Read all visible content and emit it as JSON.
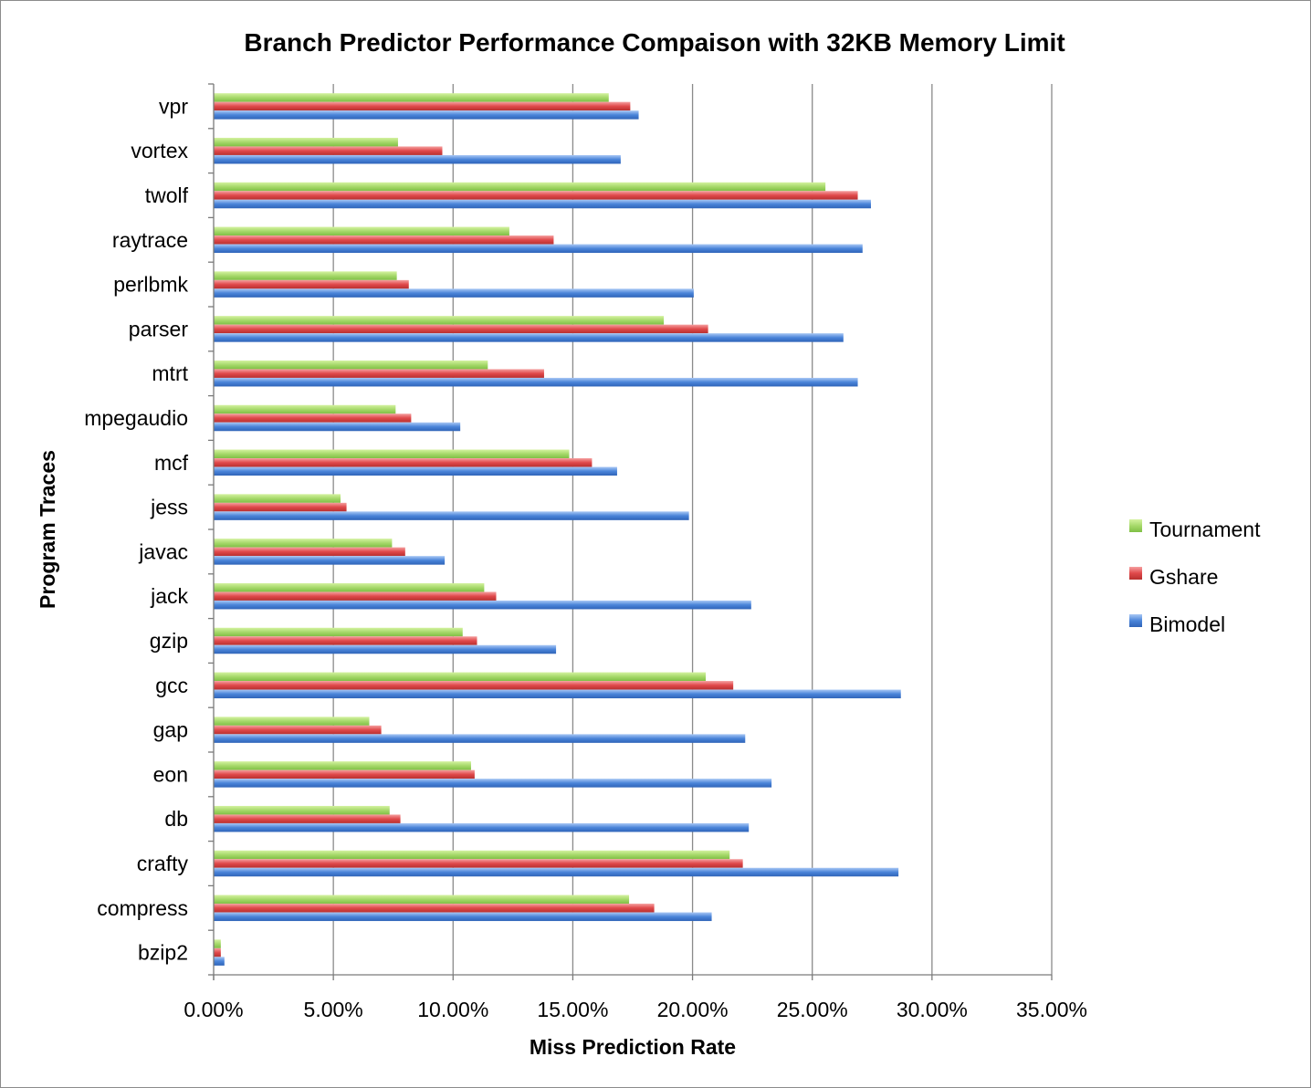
{
  "chart_data": {
    "type": "bar",
    "orientation": "horizontal",
    "title": "Branch Predictor Performance Compaison with 32KB Memory Limit",
    "xlabel": "Miss Prediction Rate",
    "ylabel": "Program Traces",
    "xlim": [
      0,
      0.35
    ],
    "x_ticks": [
      0,
      0.05,
      0.1,
      0.15,
      0.2,
      0.25,
      0.3,
      0.35
    ],
    "x_tick_labels": [
      "0.00%",
      "5.00%",
      "10.00%",
      "15.00%",
      "20.00%",
      "25.00%",
      "30.00%",
      "35.00%"
    ],
    "grid": "vertical major gridlines",
    "legend_position": "right",
    "categories": [
      "vpr",
      "vortex",
      "twolf",
      "raytrace",
      "perlbmk",
      "parser",
      "mtrt",
      "mpegaudio",
      "mcf",
      "jess",
      "javac",
      "jack",
      "gzip",
      "gcc",
      "gap",
      "eon",
      "db",
      "crafty",
      "compress",
      "bzip2"
    ],
    "series": [
      {
        "name": "Tournament",
        "color": "#a6d96a",
        "values": [
          0.165,
          0.077,
          0.2555,
          0.1235,
          0.0765,
          0.188,
          0.1145,
          0.076,
          0.1485,
          0.053,
          0.0745,
          0.113,
          0.104,
          0.2055,
          0.065,
          0.1075,
          0.0735,
          0.2155,
          0.1735,
          0.003
        ]
      },
      {
        "name": "Gshare",
        "color": "#e0494b",
        "values": [
          0.174,
          0.0955,
          0.269,
          0.142,
          0.0815,
          0.2065,
          0.138,
          0.0825,
          0.158,
          0.0555,
          0.08,
          0.118,
          0.11,
          0.217,
          0.07,
          0.109,
          0.078,
          0.221,
          0.184,
          0.003
        ]
      },
      {
        "name": "Bimodel",
        "color": "#4a84d9",
        "values": [
          0.1775,
          0.17,
          0.2745,
          0.271,
          0.2005,
          0.263,
          0.269,
          0.103,
          0.1685,
          0.1985,
          0.0965,
          0.2245,
          0.143,
          0.287,
          0.222,
          0.233,
          0.2235,
          0.286,
          0.208,
          0.0045
        ]
      }
    ],
    "legend_order": [
      "Tournament",
      "Gshare",
      "Bimodel"
    ]
  }
}
